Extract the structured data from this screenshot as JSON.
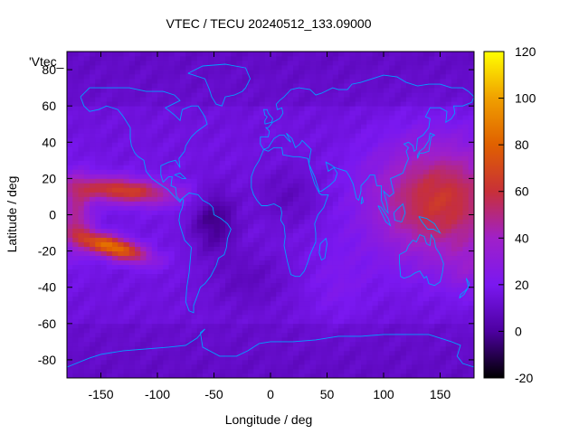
{
  "chart_data": {
    "type": "heatmap",
    "title": "VTEC / TECU 20240512_133.09000",
    "xlabel": "Longitude / deg",
    "ylabel": "Latitude / deg",
    "key_label": "'Vtec_",
    "xlim": [
      -180,
      180
    ],
    "ylim": [
      -90,
      90
    ],
    "xticks": [
      -150,
      -100,
      -50,
      0,
      50,
      100,
      150
    ],
    "yticks": [
      -80,
      -60,
      -40,
      -20,
      0,
      20,
      40,
      60,
      80
    ],
    "colorbar": {
      "range": [
        -20,
        120
      ],
      "ticks": [
        -20,
        0,
        20,
        40,
        60,
        80,
        100,
        120
      ],
      "colormap": "gnuplot pm3d (black-purple-red-orange-yellow)",
      "colors": [
        "#000000",
        "#4d00a0",
        "#7a18f0",
        "#a020c8",
        "#c83038",
        "#e06000",
        "#f0a000",
        "#ffff00"
      ]
    },
    "grid": false,
    "legend_position": "top-left",
    "overlay": "coastlines",
    "overlay_color": "#00a0ff",
    "field_description_cells": {
      "background_value": 12,
      "features": [
        {
          "name": "pacific-northern-crest",
          "lon": -120,
          "lat": 15,
          "peak": 62
        },
        {
          "name": "pacific-southern-crest",
          "lon": -140,
          "lat": -17,
          "peak": 82
        },
        {
          "name": "asia-maximum",
          "lon": 150,
          "lat": 8,
          "peak": 58
        },
        {
          "name": "south-america-minimum",
          "lon": -50,
          "lat": -3,
          "peak": -8
        },
        {
          "name": "africa-minimum",
          "lon": 15,
          "lat": 10,
          "peak": 3
        }
      ]
    }
  }
}
